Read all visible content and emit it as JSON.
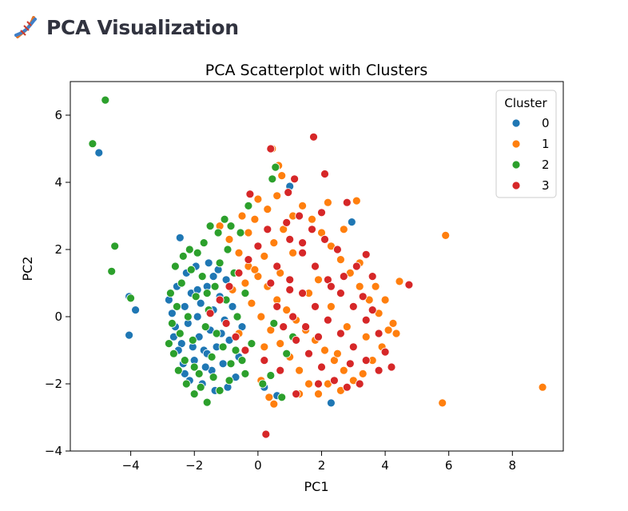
{
  "header": {
    "title": "PCA Visualization",
    "icon": "dna-icon"
  },
  "chart_data": {
    "type": "scatter",
    "title": "PCA Scatterplot with Clusters",
    "xlabel": "PC1",
    "ylabel": "PC2",
    "xlim": [
      -5.9,
      9.6
    ],
    "ylim": [
      -4,
      7
    ],
    "xticks": [
      -4,
      -2,
      0,
      2,
      4,
      6,
      8
    ],
    "yticks": [
      -4,
      -2,
      0,
      2,
      4,
      6
    ],
    "xtick_labels": [
      "−4",
      "−2",
      "0",
      "2",
      "4",
      "6",
      "8"
    ],
    "ytick_labels": [
      "−4",
      "−2",
      "0",
      "2",
      "4",
      "6"
    ],
    "grid": false,
    "legend": {
      "title": "Cluster",
      "position": "top-right"
    },
    "colors": {
      "0": "#1f77b4",
      "1": "#ff7f0e",
      "2": "#2ca02c",
      "3": "#d62728"
    },
    "series": [
      {
        "name": "0",
        "color": "#1f77b4",
        "points": [
          [
            -5.0,
            4.88
          ],
          [
            -4.05,
            0.6
          ],
          [
            -3.85,
            0.2
          ],
          [
            -4.05,
            -0.55
          ],
          [
            -2.45,
            2.35
          ],
          [
            1.0,
            3.88
          ],
          [
            2.95,
            2.82
          ],
          [
            2.3,
            -2.57
          ],
          [
            0.2,
            -2.1
          ],
          [
            0.6,
            -2.35
          ],
          [
            -2.8,
            0.5
          ],
          [
            -2.7,
            0.1
          ],
          [
            -2.6,
            -0.3
          ],
          [
            -2.55,
            0.9
          ],
          [
            -2.4,
            -0.8
          ],
          [
            -2.3,
            0.3
          ],
          [
            -2.2,
            -0.2
          ],
          [
            -2.1,
            0.7
          ],
          [
            -2.0,
            -1.3
          ],
          [
            -1.9,
            0.0
          ],
          [
            -1.85,
            -0.6
          ],
          [
            -1.8,
            0.4
          ],
          [
            -1.7,
            -1.0
          ],
          [
            -1.6,
            0.9
          ],
          [
            -1.5,
            -0.4
          ],
          [
            -1.45,
            -1.6
          ],
          [
            -1.4,
            0.2
          ],
          [
            -1.3,
            -0.9
          ],
          [
            -1.2,
            0.6
          ],
          [
            -1.1,
            -1.4
          ],
          [
            -1.05,
            -0.1
          ],
          [
            -1.0,
            1.1
          ],
          [
            -0.9,
            -0.7
          ],
          [
            -0.8,
            0.3
          ],
          [
            -0.7,
            -1.8
          ],
          [
            -2.35,
            -1.4
          ],
          [
            -2.25,
            1.3
          ],
          [
            -2.15,
            -1.9
          ],
          [
            -1.95,
            1.5
          ],
          [
            -1.75,
            -2.0
          ],
          [
            -1.55,
            1.6
          ],
          [
            -1.35,
            -2.2
          ],
          [
            -1.25,
            1.4
          ],
          [
            -0.95,
            -2.1
          ],
          [
            -0.6,
            -1.2
          ],
          [
            -2.5,
            -1.0
          ],
          [
            -2.05,
            -0.9
          ],
          [
            -1.65,
            -1.5
          ],
          [
            -1.15,
            -0.5
          ],
          [
            -0.5,
            -0.3
          ],
          [
            -2.65,
            -0.6
          ],
          [
            -1.9,
            0.8
          ],
          [
            -1.4,
            1.2
          ],
          [
            -2.3,
            -1.7
          ],
          [
            -1.6,
            -1.1
          ]
        ]
      },
      {
        "name": "1",
        "color": "#ff7f0e",
        "points": [
          [
            5.9,
            2.42
          ],
          [
            8.95,
            -2.1
          ],
          [
            5.8,
            -2.57
          ],
          [
            4.45,
            1.05
          ],
          [
            4.35,
            -0.5
          ],
          [
            4.25,
            -0.2
          ],
          [
            0.45,
            5.0
          ],
          [
            0.65,
            4.5
          ],
          [
            0.75,
            4.2
          ],
          [
            -0.1,
            2.9
          ],
          [
            3.1,
            3.45
          ],
          [
            2.2,
            3.4
          ],
          [
            0.5,
            -2.6
          ],
          [
            0.35,
            -2.4
          ],
          [
            0.1,
            -1.9
          ],
          [
            -0.5,
            3.0
          ],
          [
            -1.2,
            2.7
          ],
          [
            -0.9,
            2.3
          ],
          [
            -0.6,
            1.9
          ],
          [
            -0.3,
            1.5
          ],
          [
            0.0,
            1.2
          ],
          [
            0.3,
            0.9
          ],
          [
            0.6,
            0.5
          ],
          [
            0.9,
            0.2
          ],
          [
            1.2,
            -0.1
          ],
          [
            1.5,
            -0.4
          ],
          [
            1.8,
            -0.7
          ],
          [
            2.1,
            -1.0
          ],
          [
            2.4,
            -1.3
          ],
          [
            2.7,
            -1.6
          ],
          [
            3.0,
            -1.9
          ],
          [
            3.3,
            -1.7
          ],
          [
            3.6,
            -1.3
          ],
          [
            3.9,
            -0.9
          ],
          [
            4.1,
            -0.4
          ],
          [
            3.8,
            0.1
          ],
          [
            3.5,
            0.5
          ],
          [
            3.2,
            0.9
          ],
          [
            2.9,
            1.3
          ],
          [
            2.6,
            1.7
          ],
          [
            2.3,
            2.1
          ],
          [
            2.0,
            2.5
          ],
          [
            1.7,
            2.9
          ],
          [
            1.4,
            3.3
          ],
          [
            1.1,
            3.0
          ],
          [
            0.8,
            2.6
          ],
          [
            0.5,
            2.2
          ],
          [
            0.2,
            1.8
          ],
          [
            -0.1,
            1.4
          ],
          [
            -0.4,
            1.0
          ],
          [
            -0.2,
            0.4
          ],
          [
            0.1,
            0.0
          ],
          [
            0.4,
            -0.4
          ],
          [
            0.7,
            -0.8
          ],
          [
            1.0,
            -1.2
          ],
          [
            1.3,
            -1.6
          ],
          [
            1.6,
            -2.0
          ],
          [
            1.9,
            -2.3
          ],
          [
            2.2,
            -2.0
          ],
          [
            2.5,
            -1.1
          ],
          [
            0.0,
            3.5
          ],
          [
            0.3,
            3.2
          ],
          [
            0.6,
            3.6
          ],
          [
            -0.3,
            2.5
          ],
          [
            1.9,
            1.1
          ],
          [
            1.6,
            0.7
          ],
          [
            2.3,
            0.3
          ],
          [
            2.8,
            -0.3
          ],
          [
            3.4,
            -0.6
          ],
          [
            1.1,
            1.9
          ],
          [
            0.7,
            1.3
          ],
          [
            0.2,
            -0.9
          ],
          [
            -0.6,
            -0.5
          ],
          [
            -0.8,
            0.8
          ],
          [
            1.3,
            -2.3
          ],
          [
            2.6,
            -2.2
          ],
          [
            3.7,
            0.9
          ],
          [
            4.0,
            0.5
          ],
          [
            3.2,
            1.6
          ],
          [
            2.7,
            2.6
          ]
        ]
      },
      {
        "name": "2",
        "color": "#2ca02c",
        "points": [
          [
            -4.8,
            6.45
          ],
          [
            -5.2,
            5.15
          ],
          [
            -4.5,
            2.1
          ],
          [
            -4.6,
            1.35
          ],
          [
            -4.0,
            0.55
          ],
          [
            0.45,
            4.1
          ],
          [
            0.55,
            4.45
          ],
          [
            0.75,
            -2.4
          ],
          [
            0.15,
            -2.0
          ],
          [
            0.4,
            -1.75
          ],
          [
            -1.6,
            -2.55
          ],
          [
            -2.0,
            -2.3
          ],
          [
            -1.2,
            -2.2
          ],
          [
            -0.9,
            -1.9
          ],
          [
            -0.4,
            -1.7
          ],
          [
            -2.75,
            0.7
          ],
          [
            -2.7,
            -0.2
          ],
          [
            -2.65,
            -1.1
          ],
          [
            -2.55,
            0.3
          ],
          [
            -2.45,
            -0.5
          ],
          [
            -2.4,
            1.0
          ],
          [
            -2.3,
            -1.3
          ],
          [
            -2.2,
            0.0
          ],
          [
            -2.1,
            1.4
          ],
          [
            -2.05,
            -0.7
          ],
          [
            -1.95,
            0.6
          ],
          [
            -1.85,
            -1.7
          ],
          [
            -1.75,
            1.2
          ],
          [
            -1.65,
            -0.3
          ],
          [
            -1.55,
            0.2
          ],
          [
            -1.45,
            -1.2
          ],
          [
            -1.35,
            0.9
          ],
          [
            -1.3,
            -0.5
          ],
          [
            -1.2,
            1.6
          ],
          [
            -1.1,
            -0.9
          ],
          [
            -1.0,
            0.5
          ],
          [
            -0.95,
            2.0
          ],
          [
            -0.85,
            -1.4
          ],
          [
            -0.75,
            1.3
          ],
          [
            -0.65,
            0.0
          ],
          [
            -2.6,
            1.5
          ],
          [
            -2.35,
            1.8
          ],
          [
            -2.15,
            2.0
          ],
          [
            -1.9,
            1.9
          ],
          [
            -1.7,
            2.2
          ],
          [
            -1.5,
            2.7
          ],
          [
            -1.25,
            2.5
          ],
          [
            -1.05,
            2.9
          ],
          [
            -0.85,
            2.7
          ],
          [
            -0.55,
            2.5
          ],
          [
            -0.3,
            3.3
          ],
          [
            -2.5,
            -1.6
          ],
          [
            -2.25,
            -2.0
          ],
          [
            -1.8,
            -2.1
          ],
          [
            -1.4,
            -1.8
          ],
          [
            -2.8,
            -0.8
          ],
          [
            -2.0,
            -1.5
          ],
          [
            -1.6,
            0.7
          ],
          [
            -0.7,
            -1.0
          ],
          [
            -0.5,
            -1.3
          ],
          [
            1.1,
            -0.6
          ],
          [
            0.9,
            -1.1
          ],
          [
            0.5,
            -0.2
          ],
          [
            -0.2,
            -0.8
          ],
          [
            -0.4,
            0.7
          ]
        ]
      },
      {
        "name": "3",
        "color": "#d62728",
        "points": [
          [
            1.75,
            5.35
          ],
          [
            0.4,
            5.0
          ],
          [
            2.1,
            4.25
          ],
          [
            1.15,
            4.1
          ],
          [
            0.95,
            3.7
          ],
          [
            2.8,
            3.4
          ],
          [
            -0.25,
            3.65
          ],
          [
            0.25,
            -3.5
          ],
          [
            1.2,
            -2.3
          ],
          [
            1.9,
            -2.0
          ],
          [
            4.75,
            0.95
          ],
          [
            4.0,
            -1.05
          ],
          [
            4.2,
            -1.5
          ],
          [
            3.6,
            1.2
          ],
          [
            3.4,
            1.85
          ],
          [
            0.6,
            1.5
          ],
          [
            1.0,
            1.1
          ],
          [
            1.4,
            0.7
          ],
          [
            1.8,
            0.3
          ],
          [
            2.2,
            -0.1
          ],
          [
            2.6,
            -0.5
          ],
          [
            3.0,
            -0.9
          ],
          [
            3.4,
            -1.3
          ],
          [
            3.8,
            -1.6
          ],
          [
            1.0,
            2.3
          ],
          [
            1.4,
            1.9
          ],
          [
            1.8,
            1.5
          ],
          [
            2.2,
            1.1
          ],
          [
            2.6,
            0.7
          ],
          [
            3.0,
            0.3
          ],
          [
            3.4,
            -0.1
          ],
          [
            3.8,
            -0.5
          ],
          [
            0.8,
            -0.3
          ],
          [
            1.2,
            -0.7
          ],
          [
            1.6,
            -1.1
          ],
          [
            2.0,
            -1.5
          ],
          [
            2.4,
            -1.9
          ],
          [
            2.8,
            -2.1
          ],
          [
            0.6,
            0.3
          ],
          [
            1.1,
            0.0
          ],
          [
            1.5,
            -0.3
          ],
          [
            1.9,
            -0.6
          ],
          [
            2.3,
            0.9
          ],
          [
            2.7,
            1.2
          ],
          [
            3.1,
            1.5
          ],
          [
            0.9,
            2.8
          ],
          [
            1.3,
            3.0
          ],
          [
            1.7,
            2.6
          ],
          [
            2.1,
            2.3
          ],
          [
            2.5,
            2.0
          ],
          [
            0.3,
            2.6
          ],
          [
            0.0,
            2.1
          ],
          [
            -0.3,
            1.7
          ],
          [
            -0.6,
            1.3
          ],
          [
            -0.9,
            0.9
          ],
          [
            -1.2,
            0.5
          ],
          [
            -1.5,
            0.1
          ],
          [
            -1.0,
            -0.2
          ],
          [
            -0.7,
            -0.6
          ],
          [
            -0.4,
            -1.0
          ],
          [
            0.2,
            -1.3
          ],
          [
            0.7,
            -1.6
          ],
          [
            3.3,
            0.6
          ],
          [
            3.6,
            0.2
          ],
          [
            2.9,
            -1.4
          ],
          [
            1.4,
            2.2
          ],
          [
            1.0,
            0.8
          ],
          [
            0.4,
            1.0
          ],
          [
            2.0,
            3.1
          ],
          [
            3.2,
            -2.0
          ]
        ]
      }
    ]
  }
}
